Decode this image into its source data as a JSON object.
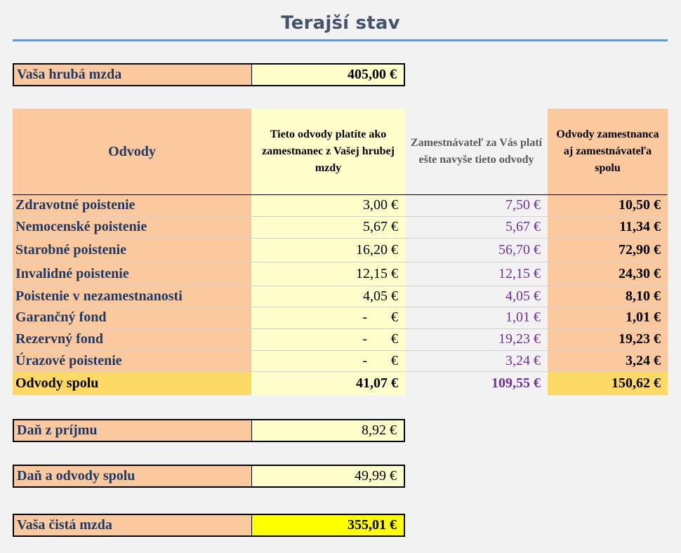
{
  "title": "Terajší stav",
  "gross": {
    "label": "Vaša hrubá mzda",
    "value": "405,00 €"
  },
  "table": {
    "headers": {
      "col0": "Odvody",
      "col1": "Tieto odvody platíte ako zamestnanec z Vašej hrubej mzdy",
      "col2": "Zamestnávateľ za Vás platí ešte navyše tieto odvody",
      "col3": "Odvody zamestnanca aj zamestnávateľa spolu"
    },
    "rows": [
      {
        "label": "Zdravotné poistenie",
        "employee": "3,00 €",
        "employer": "7,50 €",
        "total": "10,50 €"
      },
      {
        "label": "Nemocenské poistenie",
        "employee": "5,67 €",
        "employer": "5,67 €",
        "total": "11,34 €"
      },
      {
        "label": "Starobné poistenie",
        "employee": "16,20 €",
        "employer": "56,70 €",
        "total": "72,90 €"
      },
      {
        "label": "Invalidné poistenie",
        "employee": "12,15 €",
        "employer": "12,15 €",
        "total": "24,30 €"
      },
      {
        "label": "Poistenie v nezamestnanosti",
        "employee": "4,05 €",
        "employer": "4,05 €",
        "total": "8,10 €"
      },
      {
        "label": "Garančný fond",
        "employee_dash": "-",
        "employee_cur": "€",
        "employer": "1,01 €",
        "total": "1,01 €"
      },
      {
        "label": "Rezervný fond",
        "employee_dash": "-",
        "employee_cur": "€",
        "employer": "19,23 €",
        "total": "19,23 €"
      },
      {
        "label": "Úrazové poistenie",
        "employee_dash": "-",
        "employee_cur": "€",
        "employer": "3,24 €",
        "total": "3,24 €"
      }
    ],
    "total": {
      "label": "Odvody spolu",
      "employee": "41,07 €",
      "employer": "109,55 €",
      "total": "150,62 €"
    }
  },
  "tax": {
    "label": "Daň z príjmu",
    "value": "8,92 €"
  },
  "tax_and_contrib": {
    "label": "Daň a odvody spolu",
    "value": "49,99 €"
  },
  "net": {
    "label": "Vaša čistá mzda",
    "value": "355,01 €"
  }
}
